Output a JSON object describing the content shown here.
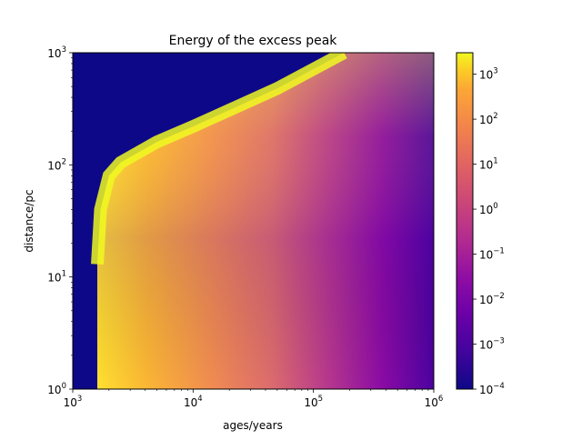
{
  "chart_data": {
    "type": "heatmap",
    "title": "Energy of the excess peak",
    "xlabel": "ages/years",
    "ylabel": "distance/pc",
    "xscale": "log",
    "yscale": "log",
    "xlim": [
      1000,
      1000000
    ],
    "ylim": [
      1,
      1000
    ],
    "x_ticks": [
      {
        "value": 1000,
        "base": "10",
        "exp": "3"
      },
      {
        "value": 10000,
        "base": "10",
        "exp": "4"
      },
      {
        "value": 100000,
        "base": "10",
        "exp": "5"
      },
      {
        "value": 1000000,
        "base": "10",
        "exp": "6"
      }
    ],
    "y_ticks": [
      {
        "value": 1,
        "base": "10",
        "exp": "0"
      },
      {
        "value": 10,
        "base": "10",
        "exp": "1"
      },
      {
        "value": 100,
        "base": "10",
        "exp": "2"
      },
      {
        "value": 1000,
        "base": "10",
        "exp": "3"
      }
    ],
    "colorbar": {
      "scale": "log",
      "colormap": "plasma",
      "range": [
        0.0001,
        3000
      ],
      "ticks": [
        {
          "value": 1000,
          "base": "10",
          "exp": "3"
        },
        {
          "value": 100,
          "base": "10",
          "exp": "2"
        },
        {
          "value": 10,
          "base": "10",
          "exp": "1"
        },
        {
          "value": 1,
          "base": "10",
          "exp": "0"
        },
        {
          "value": 0.1,
          "base": "10",
          "exp": "−1"
        },
        {
          "value": 0.01,
          "base": "10",
          "exp": "−2"
        },
        {
          "value": 0.001,
          "base": "10",
          "exp": "−3"
        },
        {
          "value": 0.0001,
          "base": "10",
          "exp": "−4"
        }
      ]
    },
    "regions": {
      "below_min_age_years": 1600,
      "boundary_distance_vs_age": [
        {
          "age": 1600,
          "distance": 1
        },
        {
          "age": 1600,
          "distance": 13
        },
        {
          "age": 1700,
          "distance": 40
        },
        {
          "age": 2000,
          "distance": 80
        },
        {
          "age": 2500,
          "distance": 105
        },
        {
          "age": 5000,
          "distance": 160
        },
        {
          "age": 10000,
          "distance": 220
        },
        {
          "age": 50000,
          "distance": 480
        },
        {
          "age": 180000,
          "distance": 1000
        }
      ],
      "fill_value_outside": 0.0001
    }
  }
}
